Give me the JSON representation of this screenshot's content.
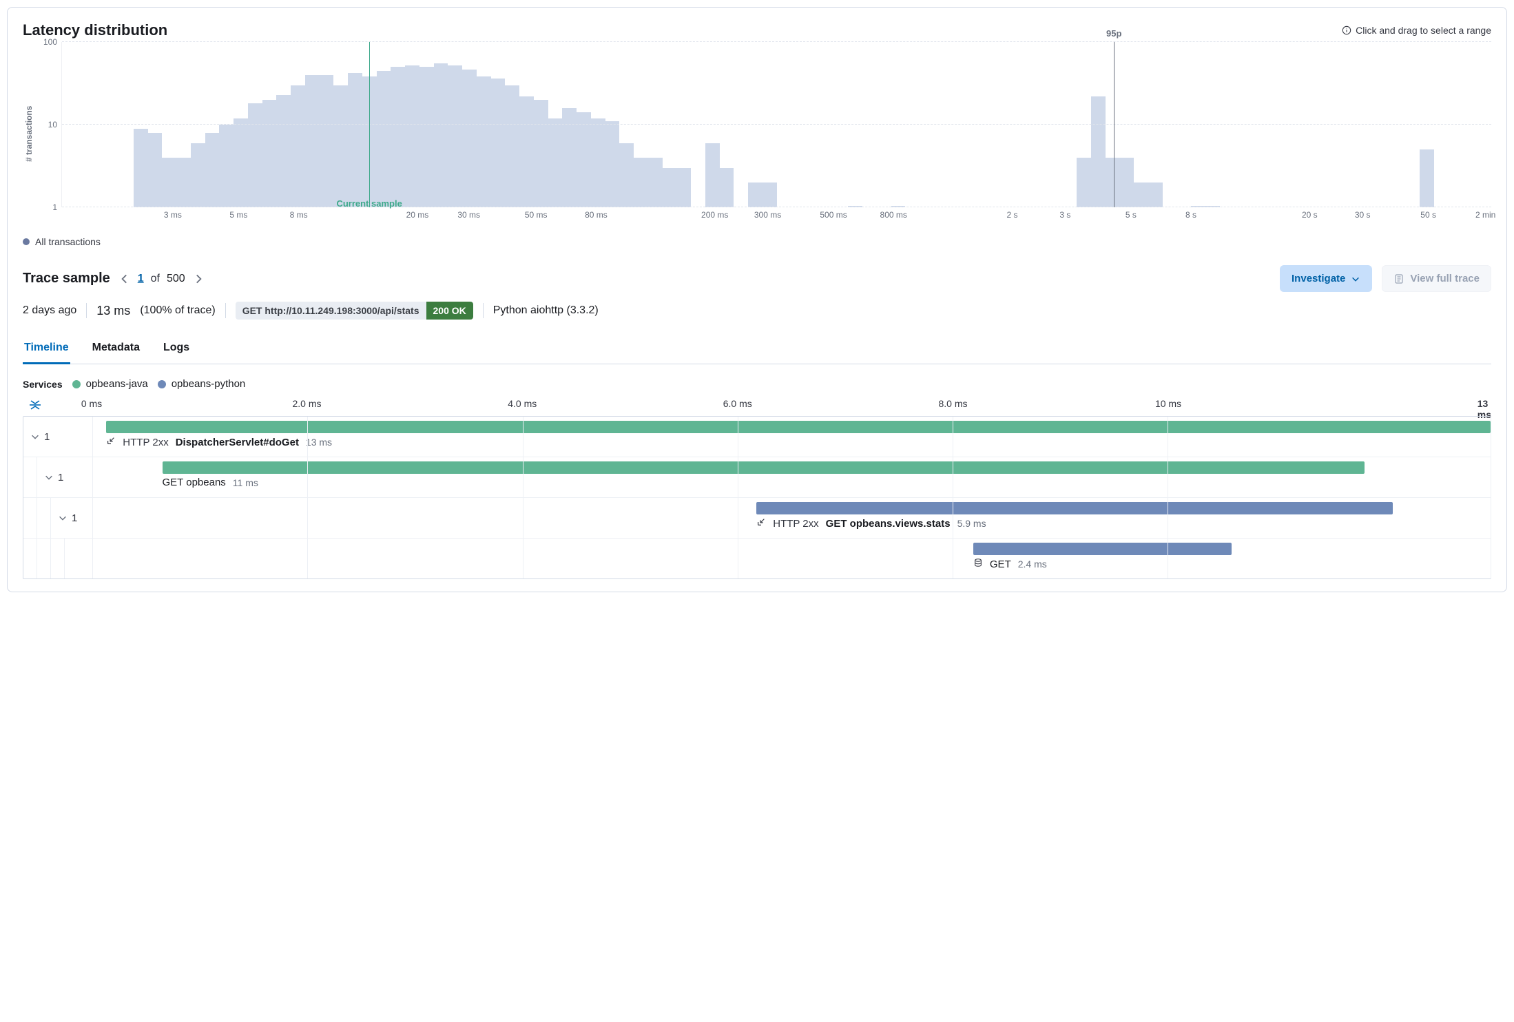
{
  "colors": {
    "bar_fill": "#cfd9ea",
    "grid": "#e0e4ec",
    "text_muted": "#69707d",
    "current_sample": "#3ea98b",
    "p95": "#69707d",
    "series_java": "#5fb593",
    "series_python": "#6e89b8",
    "investigate_bg": "#c7dffb",
    "investigate_fg": "#006bb8",
    "status_ok_bg": "#3c7d3f",
    "legend_dot": "#6a79a0"
  },
  "chart": {
    "title": "Latency distribution",
    "drag_hint": "Click and drag to select a range",
    "y_label": "# transactions",
    "y_scale": "log",
    "y_ticks": [
      {
        "value": 1,
        "label": "1",
        "pos_pct": 0
      },
      {
        "value": 10,
        "label": "10",
        "pos_pct": 50
      },
      {
        "value": 100,
        "label": "100",
        "pos_pct": 100
      }
    ],
    "y_max": 100,
    "x_ticks": [
      {
        "label": "3 ms",
        "pos_pct": 7.8
      },
      {
        "label": "5 ms",
        "pos_pct": 12.4
      },
      {
        "label": "8 ms",
        "pos_pct": 16.6
      },
      {
        "label": "20 ms",
        "pos_pct": 24.9
      },
      {
        "label": "30 ms",
        "pos_pct": 28.5
      },
      {
        "label": "50 ms",
        "pos_pct": 33.2
      },
      {
        "label": "80 ms",
        "pos_pct": 37.4
      },
      {
        "label": "200 ms",
        "pos_pct": 45.7
      },
      {
        "label": "300 ms",
        "pos_pct": 49.4
      },
      {
        "label": "500 ms",
        "pos_pct": 54.0
      },
      {
        "label": "800 ms",
        "pos_pct": 58.2
      },
      {
        "label": "2 s",
        "pos_pct": 66.5
      },
      {
        "label": "3 s",
        "pos_pct": 70.2
      },
      {
        "label": "5 s",
        "pos_pct": 74.8
      },
      {
        "label": "8 s",
        "pos_pct": 79.0
      },
      {
        "label": "20 s",
        "pos_pct": 87.3
      },
      {
        "label": "30 s",
        "pos_pct": 91.0
      },
      {
        "label": "50 s",
        "pos_pct": 95.6
      },
      {
        "label": "2 min",
        "pos_pct": 99.6
      }
    ],
    "markers": {
      "current_sample": {
        "pos_pct": 21.5,
        "label": "Current sample"
      },
      "p95": {
        "pos_pct": 73.6,
        "label": "95p"
      }
    },
    "bars": [
      0,
      0,
      0,
      0,
      0,
      9,
      8,
      4,
      4,
      6,
      8,
      10,
      12,
      18,
      20,
      23,
      30,
      40,
      40,
      30,
      42,
      38,
      45,
      50,
      52,
      50,
      55,
      52,
      46,
      38,
      36,
      30,
      22,
      20,
      12,
      16,
      14,
      12,
      11,
      6,
      4,
      4,
      3,
      3,
      0,
      6,
      3,
      0,
      2,
      2,
      0,
      0,
      0,
      0,
      0,
      1,
      0,
      0,
      1,
      0,
      0,
      0,
      0,
      0,
      0,
      0,
      0,
      0,
      0,
      0,
      0,
      4,
      22,
      4,
      4,
      2,
      2,
      0,
      0,
      1,
      1,
      0,
      0,
      0,
      0,
      0,
      0,
      0,
      0,
      0,
      0,
      0,
      0,
      0,
      0,
      5,
      0,
      0,
      0,
      0
    ],
    "legend": {
      "label": "All transactions"
    }
  },
  "trace": {
    "heading": "Trace sample",
    "pager": {
      "current": "1",
      "of_label": "of",
      "total": "500"
    },
    "investigate_label": "Investigate",
    "full_trace_label": "View full trace",
    "full_trace_disabled": true,
    "meta": {
      "age": "2 days ago",
      "duration": "13 ms",
      "pct_of_trace": "(100% of trace)",
      "request": "GET http://10.11.249.198:3000/api/stats",
      "status": "200 OK",
      "agent": "Python aiohttp (3.3.2)"
    },
    "tabs": [
      {
        "id": "timeline",
        "label": "Timeline",
        "active": true
      },
      {
        "id": "metadata",
        "label": "Metadata",
        "active": false
      },
      {
        "id": "logs",
        "label": "Logs",
        "active": false
      }
    ],
    "services": {
      "heading": "Services",
      "items": [
        {
          "name": "opbeans-java",
          "color": "#5fb593"
        },
        {
          "name": "opbeans-python",
          "color": "#6e89b8"
        }
      ]
    }
  },
  "waterfall": {
    "total_ms": 13,
    "ticks": [
      {
        "label": "0 ms",
        "pos_pct": 0
      },
      {
        "label": "2.0 ms",
        "pos_pct": 15.38
      },
      {
        "label": "4.0 ms",
        "pos_pct": 30.77
      },
      {
        "label": "6.0 ms",
        "pos_pct": 46.15
      },
      {
        "label": "8.0 ms",
        "pos_pct": 61.54
      },
      {
        "label": "10 ms",
        "pos_pct": 76.92
      },
      {
        "label": "13 ms",
        "pos_pct": 100
      }
    ],
    "rows": [
      {
        "depth": 0,
        "count": "1",
        "color": "#5fb593",
        "start_pct": 1.0,
        "width_pct": 99.0,
        "icon": "arrow-in",
        "status": "HTTP 2xx",
        "name": "DispatcherServlet#doGet",
        "duration": "13 ms",
        "is_transaction": true
      },
      {
        "depth": 1,
        "count": "1",
        "color": "#5fb593",
        "start_pct": 5.0,
        "width_pct": 86.0,
        "icon": null,
        "status": null,
        "name": "GET opbeans",
        "duration": "11 ms",
        "is_transaction": false
      },
      {
        "depth": 2,
        "count": "1",
        "color": "#6e89b8",
        "start_pct": 47.5,
        "width_pct": 45.5,
        "icon": "arrow-in",
        "status": "HTTP 2xx",
        "name": "GET opbeans.views.stats",
        "duration": "5.9 ms",
        "is_transaction": true
      },
      {
        "depth": 3,
        "count": null,
        "color": "#6e89b8",
        "start_pct": 63.0,
        "width_pct": 18.5,
        "icon": "database",
        "status": null,
        "name": "GET",
        "duration": "2.4 ms",
        "is_transaction": false
      }
    ]
  }
}
